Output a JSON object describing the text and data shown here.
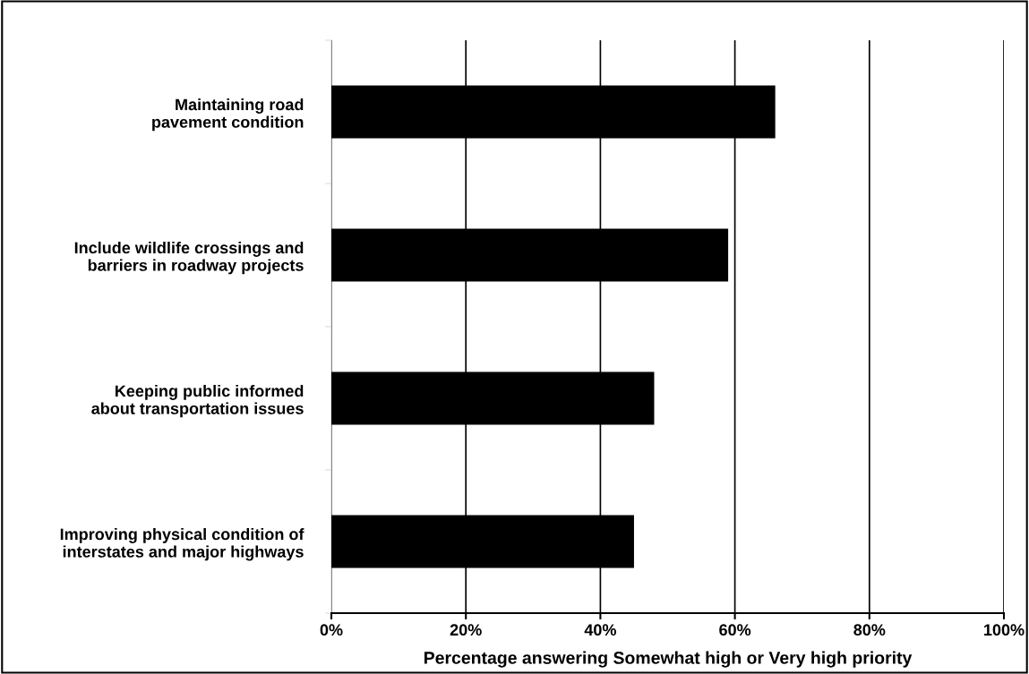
{
  "chart_data": {
    "type": "bar",
    "orientation": "horizontal",
    "xlabel": "Percentage answering Somewhat high or Very high priority",
    "categories": [
      "Maintaining road\npavement condition",
      "Include wildlife crossings and\nbarriers in roadway projects",
      "Keeping public informed\nabout transportation issues",
      "Improving physical condition of\ninterstates and major highways"
    ],
    "values": [
      66,
      59,
      48,
      45
    ],
    "color": "#000000",
    "xlim": [
      0,
      100
    ],
    "xticks": [
      {
        "value": 0,
        "label": "0%"
      },
      {
        "value": 20,
        "label": "20%"
      },
      {
        "value": 40,
        "label": "40%"
      },
      {
        "value": 60,
        "label": "60%"
      },
      {
        "value": 80,
        "label": "80%"
      },
      {
        "value": 100,
        "label": "100%"
      }
    ],
    "grid": "x",
    "legend": false
  }
}
